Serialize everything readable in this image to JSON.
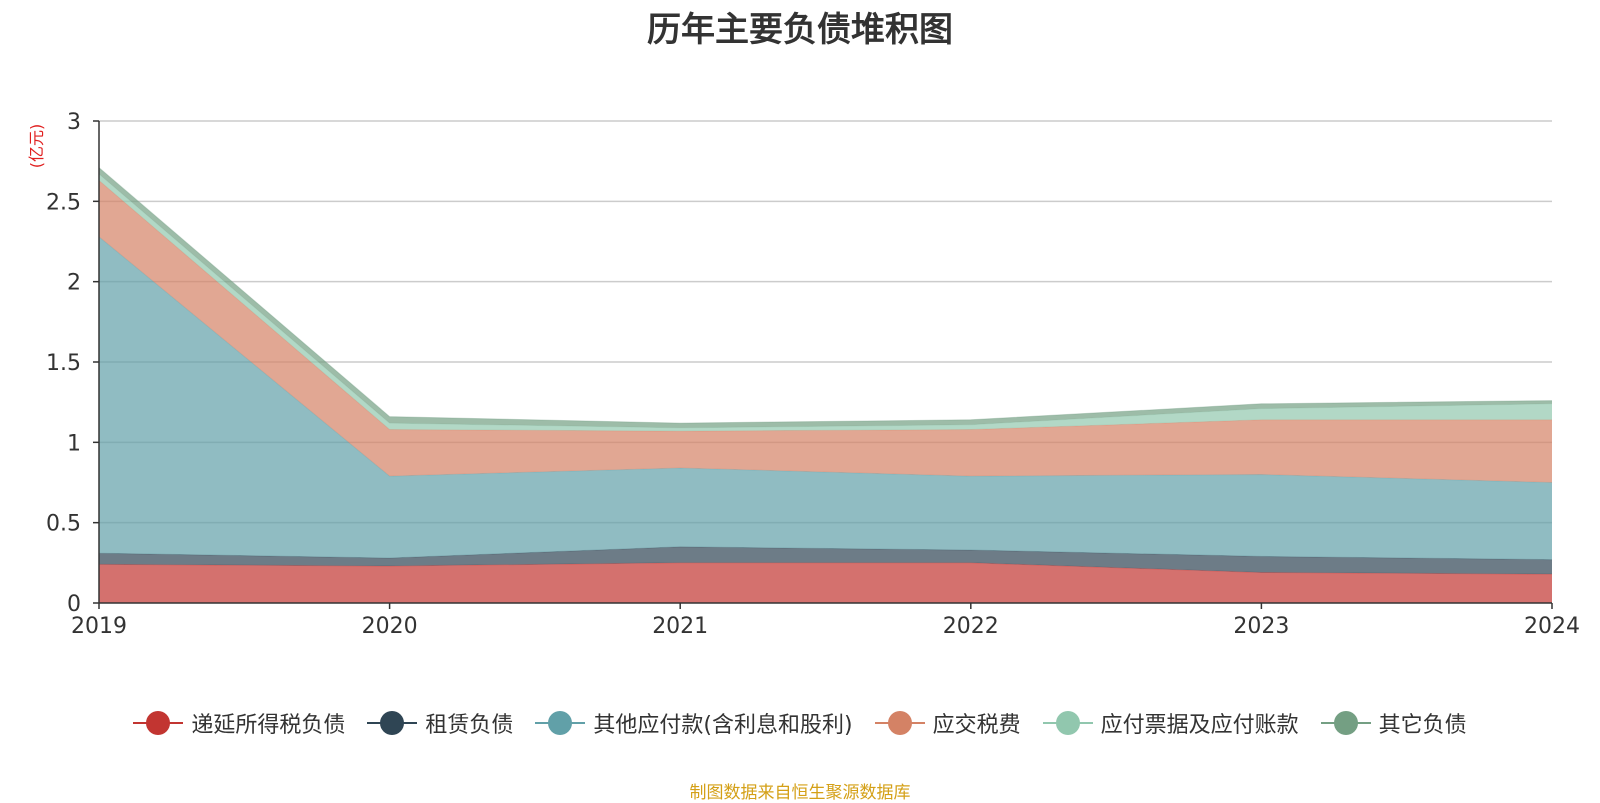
{
  "chart_data": {
    "type": "area",
    "stacked": true,
    "title": "历年主要负债堆积图",
    "ylabel": "(亿元)",
    "xlabel": "",
    "x": [
      "2019",
      "2020",
      "2021",
      "2022",
      "2023",
      "2024"
    ],
    "ylim": [
      0,
      3
    ],
    "yticks": [
      "0",
      "0.5",
      "1",
      "1.5",
      "2",
      "2.5",
      "3"
    ],
    "grid": true,
    "legend_position": "bottom",
    "series": [
      {
        "name": "递延所得税负债",
        "color": "#c23531",
        "values": [
          0.24,
          0.23,
          0.25,
          0.25,
          0.19,
          0.18
        ]
      },
      {
        "name": "租赁负债",
        "color": "#2f4554",
        "values": [
          0.07,
          0.05,
          0.1,
          0.08,
          0.1,
          0.09
        ]
      },
      {
        "name": "其他应付款(含利息和股利)",
        "color": "#61a0a8",
        "values": [
          1.97,
          0.51,
          0.49,
          0.46,
          0.51,
          0.48
        ]
      },
      {
        "name": "应交税费",
        "color": "#d48265",
        "values": [
          0.35,
          0.29,
          0.23,
          0.29,
          0.34,
          0.39
        ]
      },
      {
        "name": "应付票据及应付账款",
        "color": "#91c7ae",
        "values": [
          0.04,
          0.04,
          0.02,
          0.03,
          0.07,
          0.1
        ]
      },
      {
        "name": "其它负债",
        "color": "#749f83",
        "values": [
          0.04,
          0.04,
          0.03,
          0.03,
          0.03,
          0.02
        ]
      }
    ]
  },
  "source_note": "制图数据来自恒生聚源数据库"
}
